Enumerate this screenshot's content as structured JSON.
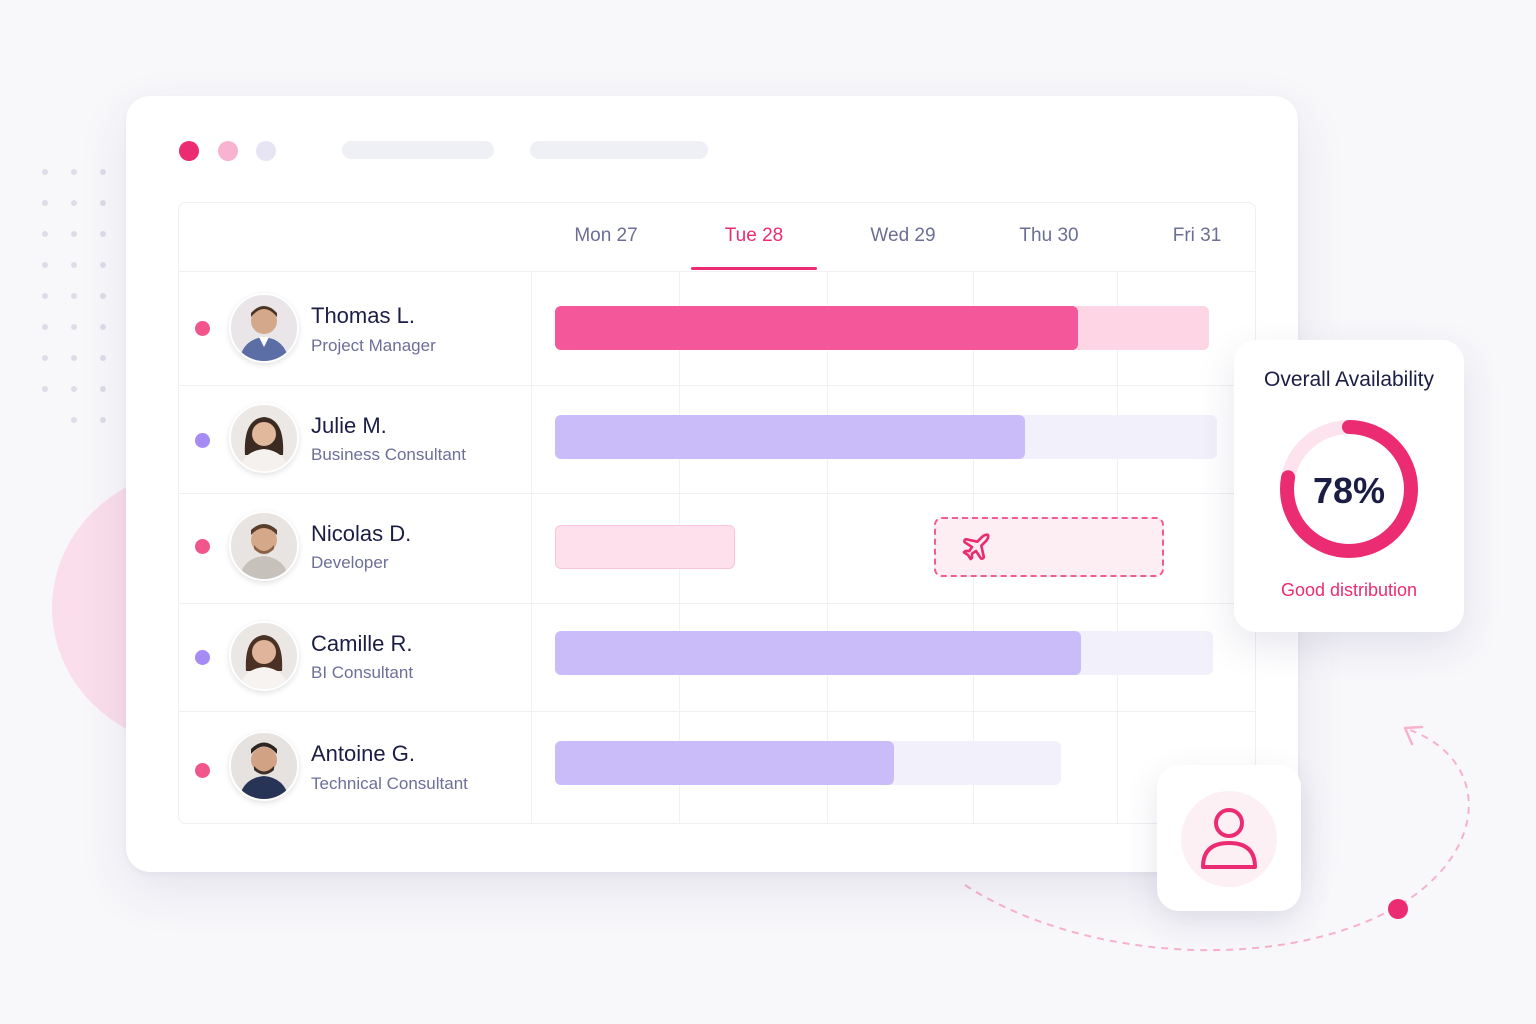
{
  "window": {
    "traffic_lights": [
      "#ec2c72",
      "#f8b3d0",
      "#e7e5f4"
    ]
  },
  "schedule": {
    "days": [
      {
        "label": "Mon 27",
        "active": false
      },
      {
        "label": "Tue 28",
        "active": true
      },
      {
        "label": "Wed 29",
        "active": false
      },
      {
        "label": "Thu 30",
        "active": false
      },
      {
        "label": "Fri 31",
        "active": false
      }
    ],
    "people": [
      {
        "name": "Thomas L.",
        "role": "Project Manager",
        "status_color": "#f0568c",
        "bar_color": "#f5589a",
        "track_color": "#fdd5e4",
        "booked_fraction": 0.8
      },
      {
        "name": "Julie M.",
        "role": "Business Consultant",
        "status_color": "#a78bf4",
        "bar_color": "#cabcf8",
        "track_color": "#f2f0fa",
        "booked_fraction": 0.71
      },
      {
        "name": "Nicolas D.",
        "role": "Developer",
        "status_color": "#f0568c",
        "bar_color": "#fde0ec",
        "track_color": "transparent",
        "booked_fraction": 1.0,
        "absence_icon": "airplane-icon"
      },
      {
        "name": "Camille R.",
        "role": "BI Consultant",
        "status_color": "#a78bf4",
        "bar_color": "#cabcf8",
        "track_color": "#f2f0fa",
        "booked_fraction": 0.8
      },
      {
        "name": "Antoine G.",
        "role": "Technical Consultant",
        "status_color": "#f0568c",
        "bar_color": "#cabcf8",
        "track_color": "#f2f0fa",
        "booked_fraction": 0.67
      }
    ]
  },
  "availability": {
    "title": "Overall Availability",
    "value": "78%",
    "percent": 78,
    "status": "Good distribution",
    "accent": "#ec2c72"
  },
  "user_card": {
    "icon": "user-icon"
  }
}
